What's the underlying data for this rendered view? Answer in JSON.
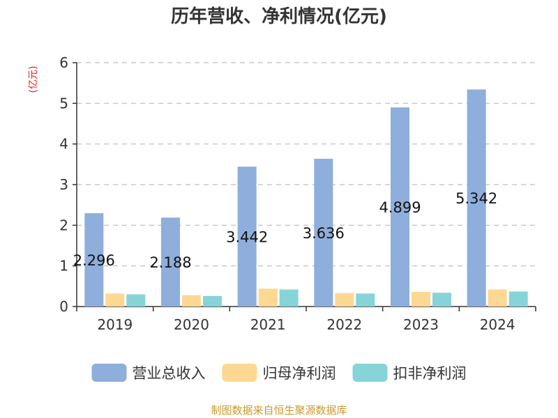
{
  "chart_data": {
    "type": "bar",
    "title": "历年营收、净利情况(亿元)",
    "unit_label": "(亿元)",
    "categories": [
      "2019",
      "2020",
      "2021",
      "2022",
      "2023",
      "2024"
    ],
    "ylim": [
      0,
      6
    ],
    "yticks": [
      "0",
      "1",
      "2",
      "3",
      "4",
      "5",
      "6"
    ],
    "grid": true,
    "legend_position": "bottom",
    "series": [
      {
        "name": "营业总收入",
        "color": "#8eaedb",
        "values": [
          2.296,
          2.188,
          3.442,
          3.636,
          4.899,
          5.342
        ],
        "labels": [
          "2.296",
          "2.188",
          "3.442",
          "3.636",
          "4.899",
          "5.342"
        ]
      },
      {
        "name": "归母净利润",
        "color": "#fdd892",
        "values": [
          0.32,
          0.28,
          0.44,
          0.33,
          0.36,
          0.42
        ]
      },
      {
        "name": "扣非净利润",
        "color": "#86d4d8",
        "values": [
          0.3,
          0.26,
          0.42,
          0.32,
          0.34,
          0.37
        ]
      }
    ],
    "source": "制图数据来自恒生聚源数据库"
  }
}
